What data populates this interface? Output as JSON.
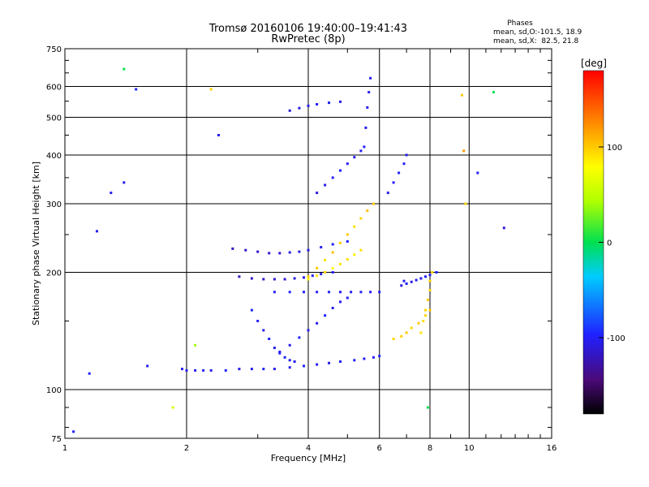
{
  "chart_data": {
    "type": "scatter",
    "title": "Tromsø 20160106 19:40:00–19:41:43",
    "subtitle": "RwPretec (8p)",
    "xlabel": "Frequency [MHz]",
    "ylabel": "Stationary phase Virtual Height [km]",
    "x_scale": "log",
    "y_scale": "log",
    "xlim": [
      1,
      16
    ],
    "ylim": [
      75,
      750
    ],
    "x_ticks": [
      1,
      2,
      4,
      6,
      8,
      10,
      16
    ],
    "y_ticks": [
      75,
      100,
      200,
      300,
      400,
      500,
      600,
      750
    ],
    "grid": true,
    "phase_info": {
      "heading": "Phases",
      "line1": "mean, sd,O:-101.5, 18.9",
      "line2": "mean, sd,X:  82.5, 21.8"
    },
    "colorbar": {
      "label": "[deg]",
      "ticks": [
        -100,
        0,
        100
      ],
      "range": [
        -180,
        180
      ]
    },
    "series": [
      {
        "x": [
          1.95,
          2.0,
          2.1,
          2.2,
          2.3,
          2.5,
          2.7,
          2.9,
          3.1,
          3.3,
          3.6,
          3.9,
          4.2,
          4.5,
          4.8,
          5.2,
          5.5,
          5.8,
          6.0
        ],
        "y": [
          113,
          112,
          112,
          112,
          112,
          112,
          113,
          113,
          113,
          113,
          114,
          115,
          116,
          117,
          118,
          119,
          120,
          121,
          122
        ],
        "phase": [
          -100,
          -100,
          -105,
          -100,
          -102,
          -98,
          -104,
          -100,
          -96,
          -102,
          -100,
          -98,
          -100,
          -104,
          -100,
          -98,
          -102,
          -100,
          -96
        ]
      },
      {
        "x": [
          2.9,
          3.0,
          3.1,
          3.2,
          3.3,
          3.4,
          3.5,
          3.6,
          3.7
        ],
        "y": [
          160,
          150,
          142,
          135,
          128,
          124,
          121,
          119,
          118
        ],
        "phase": [
          -95,
          -100,
          -102,
          -98,
          -104,
          -100,
          -96,
          -100,
          -102
        ]
      },
      {
        "x": [
          3.4,
          3.6,
          3.8,
          4.0,
          4.2,
          4.4,
          4.6,
          4.8,
          5.0
        ],
        "y": [
          125,
          130,
          136,
          142,
          148,
          155,
          162,
          168,
          172
        ],
        "phase": [
          -100,
          -104,
          -98,
          -102,
          -100,
          -96,
          -102,
          -100,
          -98
        ]
      },
      {
        "x": [
          2.6,
          2.8,
          3.0,
          3.2,
          3.4,
          3.6,
          3.8,
          4.0,
          4.3,
          4.6,
          5.0
        ],
        "y": [
          230,
          228,
          226,
          224,
          224,
          225,
          226,
          228,
          232,
          236,
          240
        ],
        "phase": [
          -120,
          -118,
          -115,
          -112,
          -110,
          -108,
          -106,
          -104,
          -100,
          -98,
          -96
        ]
      },
      {
        "x": [
          2.7,
          2.9,
          3.1,
          3.3,
          3.5,
          3.7,
          3.9,
          4.1,
          4.3,
          4.6
        ],
        "y": [
          195,
          193,
          192,
          192,
          192,
          193,
          194,
          196,
          198,
          200
        ],
        "phase": [
          -120,
          -118,
          -115,
          -114,
          -112,
          -110,
          -108,
          -106,
          -104,
          -100
        ]
      },
      {
        "x": [
          3.3,
          3.6,
          3.9,
          4.2,
          4.5,
          4.8,
          5.1,
          5.4,
          5.7,
          6.0
        ],
        "y": [
          178,
          178,
          178,
          178,
          178,
          178,
          178,
          178,
          178,
          178
        ],
        "phase": [
          -100,
          -98,
          -102,
          -100,
          -96,
          -104,
          -100,
          -98,
          -102,
          -100
        ]
      },
      {
        "x": [
          4.0,
          4.2,
          4.4,
          4.6,
          4.8,
          5.0,
          5.2,
          5.4,
          5.6,
          5.8
        ],
        "y": [
          195,
          205,
          215,
          225,
          238,
          250,
          262,
          275,
          288,
          300
        ],
        "phase": [
          95,
          100,
          90,
          105,
          98,
          100,
          92,
          96,
          104,
          100
        ]
      },
      {
        "x": [
          4.0,
          4.2,
          4.4,
          4.6,
          4.8,
          5.0,
          5.2,
          5.4
        ],
        "y": [
          192,
          196,
          200,
          205,
          210,
          216,
          222,
          228
        ],
        "phase": [
          85,
          90,
          95,
          80,
          88,
          92,
          86,
          90
        ]
      },
      {
        "x": [
          4.2,
          4.4,
          4.6,
          4.8,
          5.0,
          5.2,
          5.4
        ],
        "y": [
          320,
          335,
          350,
          365,
          380,
          395,
          410
        ],
        "phase": [
          -110,
          -105,
          -100,
          -98,
          -102,
          -104,
          -100
        ]
      },
      {
        "x": [
          5.5,
          5.55,
          5.6,
          5.65,
          5.7
        ],
        "y": [
          420,
          470,
          530,
          580,
          630
        ],
        "phase": [
          -100,
          -104,
          -98,
          -102,
          -100
        ]
      },
      {
        "x": [
          6.5,
          6.8,
          7.0,
          7.2,
          7.5,
          7.8,
          8.0
        ],
        "y": [
          135,
          137,
          140,
          144,
          148,
          155,
          160
        ],
        "phase": [
          95,
          98,
          100,
          94,
          100,
          96,
          102
        ]
      },
      {
        "x": [
          7.6,
          7.7,
          7.8,
          7.9,
          8.0,
          8.0,
          8.1
        ],
        "y": [
          140,
          150,
          160,
          170,
          180,
          190,
          200
        ],
        "phase": [
          90,
          92,
          95,
          100,
          96,
          98,
          94
        ]
      },
      {
        "x": [
          6.8,
          7.0,
          7.2,
          7.4,
          7.6,
          7.8,
          8.0,
          8.3
        ],
        "y": [
          185,
          187,
          189,
          191,
          193,
          195,
          197,
          200
        ],
        "phase": [
          -108,
          -100,
          -104,
          -98,
          -102,
          -100,
          -106,
          -100
        ]
      },
      {
        "x": [
          6.3,
          6.5,
          6.7,
          6.9,
          7.0
        ],
        "y": [
          320,
          340,
          360,
          380,
          400
        ],
        "phase": [
          -104,
          -100,
          -98,
          -102,
          -100
        ]
      },
      {
        "x": [
          3.6,
          3.8,
          4.0,
          4.2,
          4.5,
          4.8
        ],
        "y": [
          520,
          528,
          535,
          540,
          545,
          548
        ],
        "phase": [
          -110,
          -106,
          -102,
          -100,
          -98,
          -104
        ]
      }
    ],
    "noise": [
      {
        "x": 1.05,
        "y": 78,
        "phase": -100
      },
      {
        "x": 1.15,
        "y": 110,
        "phase": -98
      },
      {
        "x": 1.2,
        "y": 255,
        "phase": -102
      },
      {
        "x": 1.3,
        "y": 320,
        "phase": -100
      },
      {
        "x": 1.4,
        "y": 665,
        "phase": 0
      },
      {
        "x": 1.4,
        "y": 340,
        "phase": -104
      },
      {
        "x": 1.5,
        "y": 590,
        "phase": -100
      },
      {
        "x": 1.85,
        "y": 90,
        "phase": 60
      },
      {
        "x": 2.1,
        "y": 130,
        "phase": 40
      },
      {
        "x": 2.3,
        "y": 590,
        "phase": 95
      },
      {
        "x": 6.9,
        "y": 190,
        "phase": -100
      },
      {
        "x": 9.6,
        "y": 570,
        "phase": 100
      },
      {
        "x": 10.5,
        "y": 360,
        "phase": -100
      },
      {
        "x": 11.5,
        "y": 580,
        "phase": 0
      },
      {
        "x": 12.2,
        "y": 260,
        "phase": -110
      },
      {
        "x": 1.6,
        "y": 115,
        "phase": -100
      },
      {
        "x": 2.4,
        "y": 450,
        "phase": -100
      },
      {
        "x": 9.7,
        "y": 410,
        "phase": 120
      },
      {
        "x": 7.9,
        "y": 90,
        "phase": 0
      },
      {
        "x": 9.8,
        "y": 300,
        "phase": 95
      }
    ]
  }
}
